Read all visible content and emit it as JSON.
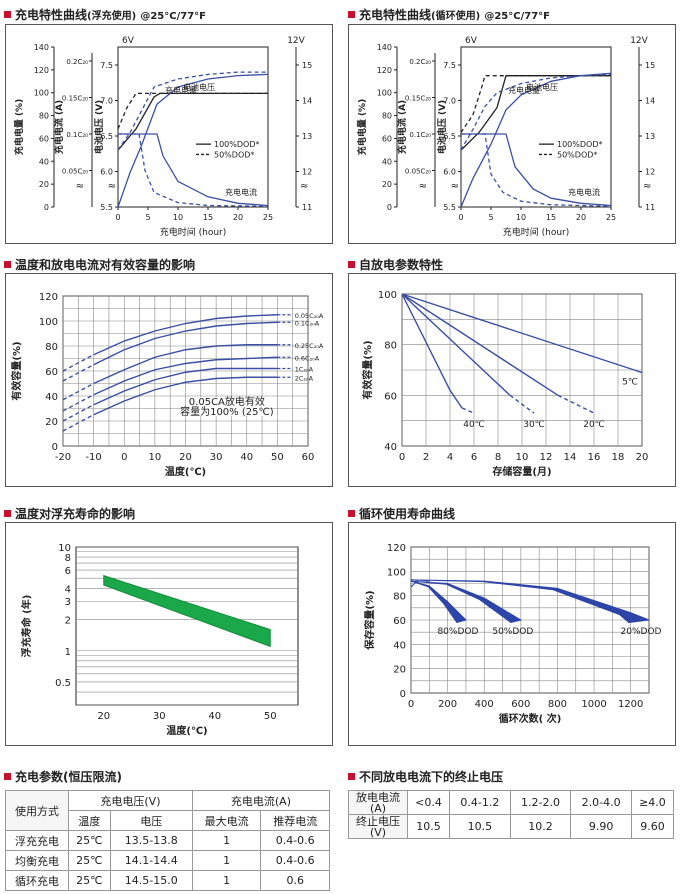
{
  "sections": {
    "c1": {
      "title": "充电特性曲线",
      "sub": "(浮充使用)",
      "cond": "@25°C/77°F"
    },
    "c2": {
      "title": "充电特性曲线",
      "sub": "(循环使用)",
      "cond": "@25°C/77°F"
    },
    "c3": {
      "title": "温度和放电电流对有效容量的影响"
    },
    "c4": {
      "title": "自放电参数特性"
    },
    "c5": {
      "title": "温度对浮充寿命的影响"
    },
    "c6": {
      "title": "循环使用寿命曲线"
    },
    "t1": {
      "title": "充电参数(恒压限流)"
    },
    "t2": {
      "title": "不同放电电流下的终止电压"
    }
  },
  "chart_data": [
    {
      "id": "c1",
      "type": "line",
      "xlabel": "充电时间 (hour)",
      "xlim": [
        0,
        25
      ],
      "xticks": [
        0,
        5,
        10,
        15,
        20,
        25
      ],
      "left_axes": [
        {
          "label": "充电电量 (%)",
          "ticks": [
            "0",
            "20",
            "40",
            "60",
            "80",
            "100",
            "120",
            "140"
          ]
        },
        {
          "label": "充电电流 (A)",
          "ticks": [
            "0.2C₂₀",
            "0.15C₂₀",
            "0.1C₂₀",
            "0.05C₂₀"
          ]
        },
        {
          "label": "电池电压 (V)",
          "ticks": [
            "7.5",
            "7.0",
            "6.5",
            "6.0",
            "5.5"
          ]
        }
      ],
      "right_axis": {
        "ticks": [
          "15",
          "14",
          "13",
          "12",
          "11"
        ]
      },
      "top_labels": [
        "6V",
        "12V"
      ],
      "legend": [
        "100%DOD*",
        "50%DOD*"
      ],
      "curve_labels": [
        "电池电压",
        "充电电量",
        "充电电流"
      ],
      "series": [
        {
          "name": "电池电压",
          "style": "solid",
          "x": [
            0,
            3,
            6,
            7,
            25
          ],
          "y": [
            6.3,
            6.6,
            7.05,
            7.1,
            7.1
          ]
        },
        {
          "name": "电池电压",
          "style": "dashed",
          "x": [
            0,
            1.5,
            3,
            3.5,
            25
          ],
          "y": [
            6.6,
            6.9,
            7.1,
            7.1,
            7.1
          ]
        },
        {
          "name": "充电电量",
          "style": "solid",
          "x": [
            0,
            2,
            4,
            6.5,
            10,
            15,
            20,
            25
          ],
          "y": [
            0,
            30,
            55,
            90,
            105,
            112,
            115,
            116
          ]
        },
        {
          "name": "充电电量",
          "style": "dashed",
          "x": [
            0,
            2,
            3.5,
            6,
            10,
            15,
            20,
            25
          ],
          "y": [
            50,
            65,
            80,
            105,
            112,
            116,
            118,
            118
          ]
        },
        {
          "name": "充电电流",
          "style": "solid",
          "x": [
            0,
            6.5,
            7.5,
            10,
            15,
            20,
            25
          ],
          "y": [
            0.1,
            0.1,
            0.07,
            0.035,
            0.014,
            0.005,
            0.002
          ]
        },
        {
          "name": "充电电流",
          "style": "dashed",
          "x": [
            0,
            3.5,
            4.5,
            6,
            10,
            15,
            25
          ],
          "y": [
            0.1,
            0.1,
            0.05,
            0.02,
            0.006,
            0.002,
            0.001
          ]
        }
      ]
    },
    {
      "id": "c2",
      "type": "line",
      "xlabel": "充电时间 (hour)",
      "xlim": [
        0,
        25
      ],
      "xticks": [
        0,
        5,
        10,
        15,
        20,
        25
      ],
      "left_axes": [
        {
          "label": "充电电量 (%)",
          "ticks": [
            "0",
            "20",
            "40",
            "60",
            "80",
            "100",
            "120",
            "140"
          ]
        },
        {
          "label": "充电电流 (A)",
          "ticks": [
            "0.2C₂₀",
            "0.15C₂₀",
            "0.1C₂₀",
            "0.05C₂₀"
          ]
        },
        {
          "label": "电池电压 (V)",
          "ticks": [
            "7.5",
            "7.0",
            "6.5",
            "6.0",
            "5.5"
          ]
        }
      ],
      "right_axis": {
        "ticks": [
          "15",
          "14",
          "13",
          "12",
          "11"
        ]
      },
      "top_labels": [
        "6V",
        "12V"
      ],
      "legend": [
        "100%DOD*",
        "50%DOD*"
      ],
      "curve_labels": [
        "电池电压",
        "充电电量",
        "充电电流"
      ],
      "series": [
        {
          "name": "电池电压",
          "style": "solid",
          "x": [
            0,
            3,
            6,
            7.5,
            25
          ],
          "y": [
            6.3,
            6.55,
            6.9,
            7.35,
            7.35
          ]
        },
        {
          "name": "电池电压",
          "style": "dashed",
          "x": [
            0,
            2,
            3.5,
            4,
            25
          ],
          "y": [
            6.55,
            6.8,
            7.2,
            7.35,
            7.35
          ]
        },
        {
          "name": "充电电量",
          "style": "solid",
          "x": [
            0,
            2,
            5,
            7.5,
            10,
            15,
            20,
            25
          ],
          "y": [
            0,
            25,
            55,
            85,
            98,
            110,
            115,
            117
          ]
        },
        {
          "name": "充电电量",
          "style": "dashed",
          "x": [
            0,
            2,
            4,
            6,
            10,
            15,
            20,
            25
          ],
          "y": [
            50,
            68,
            88,
            100,
            108,
            113,
            115,
            116
          ]
        },
        {
          "name": "充电电流",
          "style": "solid",
          "x": [
            0,
            7.5,
            9,
            12,
            15,
            20,
            25
          ],
          "y": [
            0.1,
            0.1,
            0.055,
            0.025,
            0.012,
            0.005,
            0.002
          ]
        },
        {
          "name": "充电电流",
          "style": "dashed",
          "x": [
            0,
            4,
            5,
            7,
            10,
            15,
            25
          ],
          "y": [
            0.1,
            0.1,
            0.045,
            0.02,
            0.008,
            0.003,
            0.001
          ]
        }
      ]
    },
    {
      "id": "c3",
      "type": "line",
      "xlabel": "温度(℃)",
      "ylabel": "有效容量(%)",
      "xlim": [
        -20,
        60
      ],
      "ylim": [
        0,
        120
      ],
      "xticks": [
        -20,
        -10,
        0,
        10,
        20,
        30,
        40,
        50,
        60
      ],
      "yticks": [
        0,
        20,
        40,
        60,
        80,
        100,
        120
      ],
      "annotation": [
        "0.05CA放电有效",
        "容量为100% (25℃)"
      ],
      "series": [
        {
          "name": "0.05C₂₀A",
          "x": [
            -20,
            -10,
            0,
            10,
            20,
            30,
            40,
            50
          ],
          "y": [
            60,
            73,
            84,
            92,
            98,
            102,
            104,
            105
          ]
        },
        {
          "name": "0.1C₂₀A",
          "x": [
            -20,
            -10,
            0,
            10,
            20,
            30,
            40,
            50
          ],
          "y": [
            52,
            65,
            77,
            86,
            92,
            96,
            98,
            99
          ]
        },
        {
          "name": "0.25C₂₀A",
          "x": [
            -20,
            -10,
            0,
            10,
            20,
            30,
            40,
            50
          ],
          "y": [
            37,
            50,
            61,
            71,
            77,
            80,
            81,
            81
          ]
        },
        {
          "name": "0.6C₂₀A",
          "x": [
            -20,
            -10,
            0,
            10,
            20,
            30,
            40,
            50
          ],
          "y": [
            28,
            41,
            52,
            61,
            66,
            69,
            70,
            71
          ]
        },
        {
          "name": "1C₂₀A",
          "x": [
            -20,
            -10,
            0,
            10,
            20,
            30,
            40,
            50
          ],
          "y": [
            20,
            33,
            44,
            53,
            59,
            62,
            62,
            62
          ]
        },
        {
          "name": "2C₂₀A",
          "x": [
            -20,
            -10,
            0,
            10,
            20,
            30,
            40,
            50
          ],
          "y": [
            12,
            25,
            36,
            45,
            51,
            54,
            55,
            55
          ]
        }
      ]
    },
    {
      "id": "c4",
      "type": "line",
      "xlabel": "存储容量(月)",
      "ylabel": "有效容量(%)",
      "xlim": [
        0,
        20
      ],
      "ylim": [
        40,
        100
      ],
      "xticks": [
        0,
        2,
        4,
        6,
        8,
        10,
        12,
        14,
        16,
        18,
        20
      ],
      "yticks": [
        40,
        60,
        80,
        100
      ],
      "series": [
        {
          "name": "5℃",
          "x": [
            0,
            20
          ],
          "y": [
            100,
            69
          ]
        },
        {
          "name": "20℃",
          "x": [
            0,
            13,
            16
          ],
          "y": [
            100,
            60,
            53
          ]
        },
        {
          "name": "30℃",
          "x": [
            0,
            9,
            11
          ],
          "y": [
            100,
            60,
            53
          ]
        },
        {
          "name": "40℃",
          "x": [
            0,
            4,
            5,
            6
          ],
          "y": [
            100,
            62,
            55,
            53
          ]
        }
      ]
    },
    {
      "id": "c5",
      "type": "area",
      "xlabel": "温度(℃)",
      "ylabel": "浮充寿命 (年)",
      "xlim": [
        15,
        55
      ],
      "ylim": [
        0.3,
        10
      ],
      "yscale": "log",
      "xticks": [
        20,
        30,
        40,
        50
      ],
      "yticks": [
        0.5,
        1,
        2,
        3,
        4,
        6,
        8,
        10
      ],
      "band": {
        "x": [
          20,
          50
        ],
        "upper": [
          5.3,
          1.6
        ],
        "lower": [
          4.3,
          1.1
        ]
      }
    },
    {
      "id": "c6",
      "type": "area",
      "xlabel": "循环次数( 次)",
      "ylabel": "保存容量(%)",
      "xlim": [
        0,
        1300
      ],
      "ylim": [
        0,
        120
      ],
      "xticks": [
        0,
        200,
        400,
        600,
        800,
        1000,
        1200
      ],
      "yticks": [
        0,
        20,
        40,
        60,
        80,
        100,
        120
      ],
      "series": [
        {
          "name": "80%DOD",
          "x": [
            0,
            100,
            200,
            300
          ],
          "y": [
            92,
            88,
            75,
            60
          ]
        },
        {
          "name": "50%DOD",
          "x": [
            0,
            200,
            400,
            600
          ],
          "y": [
            92,
            90,
            78,
            60
          ]
        },
        {
          "name": "20%DOD",
          "x": [
            0,
            400,
            800,
            1200,
            1300
          ],
          "y": [
            93,
            92,
            86,
            66,
            60
          ]
        }
      ]
    }
  ],
  "table1": {
    "h": {
      "mode": "使用方式",
      "voltage": "充电电压(V)",
      "current": "充电电流(A)",
      "temp": "温度",
      "volt": "电压",
      "max": "最大电流",
      "rec": "推荐电流"
    },
    "rows": [
      {
        "mode": "浮充充电",
        "temp": "25℃",
        "volt": "13.5-13.8",
        "max": "1",
        "rec": "0.4-0.6"
      },
      {
        "mode": "均衡充电",
        "temp": "25℃",
        "volt": "14.1-14.4",
        "max": "1",
        "rec": "0.4-0.6"
      },
      {
        "mode": "循环充电",
        "temp": "25℃",
        "volt": "14.5-15.0",
        "max": "1",
        "rec": "0.6"
      }
    ]
  },
  "table2": {
    "h1": "放电电流",
    "h1u": "(A)",
    "h2": "终止电压",
    "h2u": "(V)",
    "currents": [
      "<0.4",
      "0.4-1.2",
      "1.2-2.0",
      "2.0-4.0",
      "≥4.0"
    ],
    "voltages": [
      "10.5",
      "10.5",
      "10.2",
      "9.90",
      "9.60"
    ]
  }
}
